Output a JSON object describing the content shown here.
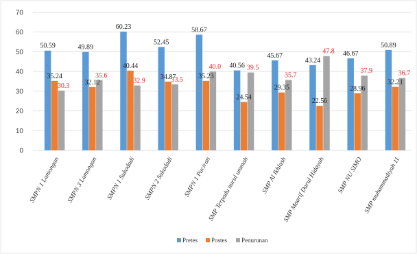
{
  "chart_data": {
    "type": "bar",
    "title": "",
    "xlabel": "",
    "ylabel": "",
    "ylim": [
      0,
      70
    ],
    "yticks": [
      0,
      10,
      20,
      30,
      40,
      50,
      60,
      70
    ],
    "grid": true,
    "legend_position": "bottom",
    "categories": [
      "SMPN 1 Lamongan",
      "SMPN 3 Lamongan",
      "SMPN 1 Sukodadi",
      "SMPN 2 Sukodadi",
      "SMPN 1 Paciran",
      "SMP Terpadu nurul ummah",
      "SMP Al Ikhlash",
      "SMP Maarif Darul Hidayah",
      "SMP NU SIMO",
      "SMP muhammadiyah 11"
    ],
    "series": [
      {
        "name": "Pretes",
        "color": "#5b9bd5",
        "values": [
          50.59,
          49.89,
          60.23,
          52.45,
          58.67,
          40.56,
          45.67,
          43.24,
          46.67,
          50.89
        ],
        "labels": [
          "50.59",
          "49.89",
          "60.23",
          "52.45",
          "58.67",
          "40.56",
          "45.67",
          "43.24",
          "46.67",
          "50.89"
        ],
        "label_color": "#202020"
      },
      {
        "name": "Postes",
        "color": "#ed7d31",
        "values": [
          35.24,
          32.12,
          40.44,
          34.87,
          35.23,
          24.54,
          29.35,
          22.56,
          28.96,
          32.21
        ],
        "labels": [
          "35.24",
          "32.12",
          "40.44",
          "34.87",
          "35.23",
          "24.54",
          "29.35",
          "22.56",
          "28.96",
          "32.21"
        ],
        "label_color": "#202020"
      },
      {
        "name": "Penurunan",
        "color": "#a5a5a5",
        "values": [
          30.3,
          35.6,
          32.9,
          33.5,
          40.0,
          39.5,
          35.7,
          47.8,
          37.9,
          36.7
        ],
        "labels": [
          "30.3",
          "35.6",
          "32.9",
          "33.5",
          "40.0",
          "39.5",
          "35.7",
          "47.8",
          "37.9",
          "36.7"
        ],
        "label_color": "#e8262a"
      }
    ]
  }
}
